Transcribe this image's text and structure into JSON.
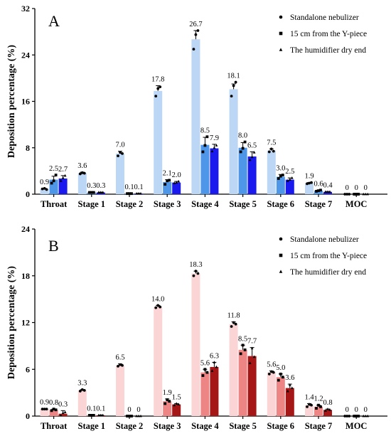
{
  "chart_data": [
    {
      "type": "bar",
      "panel_label": "A",
      "ylabel": "Deposition percentage (%)",
      "ylim": [
        0,
        32
      ],
      "yticks": [
        0,
        8,
        16,
        24,
        32
      ],
      "ytick_labels": [
        "0",
        "8",
        "16",
        "24",
        "32"
      ],
      "categories": [
        "Throat",
        "Stage 1",
        "Stage 2",
        "Stage 3",
        "Stage 4",
        "Stage 5",
        "Stage 6",
        "Stage 7",
        "MOC"
      ],
      "legend_position": "top-right",
      "series": [
        {
          "name": "Standalone nebulizer",
          "marker": "circle",
          "color": "#bcd7f5",
          "point_color": "#000000",
          "values": [
            0.9,
            3.6,
            7.0,
            17.8,
            26.7,
            18.1,
            7.5,
            1.9,
            0
          ],
          "value_labels": [
            "0.9",
            "3.6",
            "7.0",
            "17.8",
            "26.7",
            "18.1",
            "7.5",
            "1.9",
            "0"
          ],
          "errors": [
            0.1,
            0.2,
            0.4,
            0.9,
            1.5,
            0.9,
            0.3,
            0.1,
            0
          ],
          "points": [
            [
              0.9,
              1.0,
              0.8
            ],
            [
              3.5,
              3.7,
              3.6
            ],
            [
              6.6,
              7.2,
              7.0
            ],
            [
              16.9,
              18.2,
              18.5
            ],
            [
              25.0,
              27.5,
              28.2
            ],
            [
              16.9,
              18.7,
              19.3
            ],
            [
              7.3,
              7.8,
              7.4
            ],
            [
              1.8,
              1.9,
              2.0
            ],
            [
              0,
              0,
              0
            ]
          ]
        },
        {
          "name": "15 cm from the Y-piece",
          "marker": "square",
          "color": "#4d96e8",
          "point_color": "#000000",
          "values": [
            2.5,
            0.3,
            0.1,
            2.1,
            8.5,
            8.0,
            3.0,
            0.6,
            0
          ],
          "value_labels": [
            "2.5",
            "0.3",
            "0.1",
            "2.1",
            "8.5",
            "8.0",
            "3.0",
            "0.6",
            "0"
          ],
          "errors": [
            0.6,
            0.05,
            0.05,
            0.4,
            1.3,
            0.9,
            0.4,
            0.1,
            0
          ],
          "points": [
            [
              1.9,
              2.3,
              3.3
            ],
            [
              0.3,
              0.3,
              0.3
            ],
            [
              0.1,
              0.1,
              0.1
            ],
            [
              1.7,
              2.3,
              2.4
            ],
            [
              7.3,
              8.4,
              9.9
            ],
            [
              7.3,
              7.9,
              9.0
            ],
            [
              2.7,
              3.1,
              3.3
            ],
            [
              0.5,
              0.6,
              0.7
            ],
            [
              0,
              0,
              0
            ]
          ]
        },
        {
          "name": "The humidifier dry end",
          "marker": "triangle",
          "color": "#1a1aee",
          "point_color": "#000000",
          "values": [
            2.7,
            0.3,
            0.1,
            2.0,
            7.9,
            6.5,
            2.5,
            0.4,
            0
          ],
          "value_labels": [
            "2.7",
            "0.3",
            "0.1",
            "2.0",
            "7.9",
            "6.5",
            "2.5",
            "0.4",
            "0"
          ],
          "errors": [
            0.5,
            0.05,
            0.05,
            0.2,
            0.7,
            0.8,
            0.3,
            0.05,
            0
          ],
          "points": [
            [
              2.3,
              2.8,
              3.2
            ],
            [
              0.3,
              0.3,
              0.3
            ],
            [
              0.1,
              0.1,
              0.1
            ],
            [
              1.9,
              2.0,
              2.2
            ],
            [
              7.4,
              8.0,
              8.4
            ],
            [
              5.9,
              6.4,
              7.2
            ],
            [
              2.3,
              2.5,
              2.8
            ],
            [
              0.4,
              0.4,
              0.4
            ],
            [
              0,
              0,
              0
            ]
          ]
        }
      ]
    },
    {
      "type": "bar",
      "panel_label": "B",
      "ylabel": "Deposition percentage (%)",
      "ylim": [
        0,
        24
      ],
      "yticks": [
        0,
        6,
        12,
        18,
        24
      ],
      "ytick_labels": [
        "0",
        "6",
        "12",
        "18",
        "24"
      ],
      "categories": [
        "Throat",
        "Stage 1",
        "Stage 2",
        "Stage 3",
        "Stage 4",
        "Stage 5",
        "Stage 6",
        "Stage 7",
        "MOC"
      ],
      "legend_position": "top-right",
      "series": [
        {
          "name": "Standalone nebulizer",
          "marker": "circle",
          "color": "#fbd5d5",
          "point_color": "#000000",
          "values": [
            0.9,
            3.3,
            6.5,
            14.0,
            18.3,
            11.8,
            5.6,
            1.4,
            0
          ],
          "value_labels": [
            "0.9",
            "3.3",
            "6.5",
            "14.0",
            "18.3",
            "11.8",
            "5.6",
            "1.4",
            "0"
          ],
          "errors": [
            0.05,
            0.1,
            0.2,
            0.2,
            0.3,
            0.3,
            0.2,
            0.2,
            0
          ],
          "points": [
            [
              0.9,
              0.9,
              0.9
            ],
            [
              3.2,
              3.4,
              3.3
            ],
            [
              6.4,
              6.6,
              6.5
            ],
            [
              13.9,
              14.2,
              14.0
            ],
            [
              18.0,
              18.6,
              18.3
            ],
            [
              11.5,
              12.0,
              11.8
            ],
            [
              5.4,
              5.7,
              5.6
            ],
            [
              1.2,
              1.5,
              1.4
            ],
            [
              0,
              0,
              0
            ]
          ]
        },
        {
          "name": "15 cm from the Y-piece",
          "marker": "square",
          "color": "#ee8585",
          "point_color": "#000000",
          "values": [
            0.8,
            0.1,
            0,
            1.9,
            5.6,
            8.5,
            5.0,
            1.2,
            0
          ],
          "value_labels": [
            "0.8",
            "0.1",
            "0",
            "1.9",
            "5.6",
            "8.5",
            "5.0",
            "1.2",
            "0"
          ],
          "errors": [
            0.1,
            0.05,
            0,
            0.3,
            0.4,
            0.6,
            0.4,
            0.2,
            0
          ],
          "points": [
            [
              0.7,
              0.9,
              0.8
            ],
            [
              0.1,
              0.1,
              0.1
            ],
            [
              0,
              0,
              0
            ],
            [
              1.6,
              2.1,
              1.9
            ],
            [
              5.2,
              6.0,
              5.6
            ],
            [
              8.0,
              9.1,
              8.5
            ],
            [
              4.6,
              5.4,
              5.0
            ],
            [
              1.0,
              1.4,
              1.2
            ],
            [
              0,
              0,
              0
            ]
          ]
        },
        {
          "name": "The humidifier dry end",
          "marker": "triangle",
          "color": "#a51616",
          "point_color": "#000000",
          "values": [
            0.3,
            0.1,
            0,
            1.5,
            6.3,
            7.7,
            3.6,
            0.8,
            0
          ],
          "value_labels": [
            "0.3",
            "0.1",
            "0",
            "1.5",
            "6.3",
            "7.7",
            "3.6",
            "0.8",
            "0"
          ],
          "errors": [
            0.4,
            0.05,
            0,
            0.1,
            0.6,
            1.1,
            0.5,
            0.1,
            0
          ],
          "points": [
            [
              0.1,
              0.4,
              0.5
            ],
            [
              0.1,
              0.1,
              0.1
            ],
            [
              0,
              0,
              0
            ],
            [
              1.4,
              1.6,
              1.5
            ],
            [
              5.8,
              6.9,
              6.3
            ],
            [
              6.8,
              8.7,
              7.6
            ],
            [
              3.2,
              4.0,
              3.6
            ],
            [
              0.7,
              0.9,
              0.8
            ],
            [
              0,
              0,
              0
            ]
          ]
        }
      ]
    }
  ]
}
